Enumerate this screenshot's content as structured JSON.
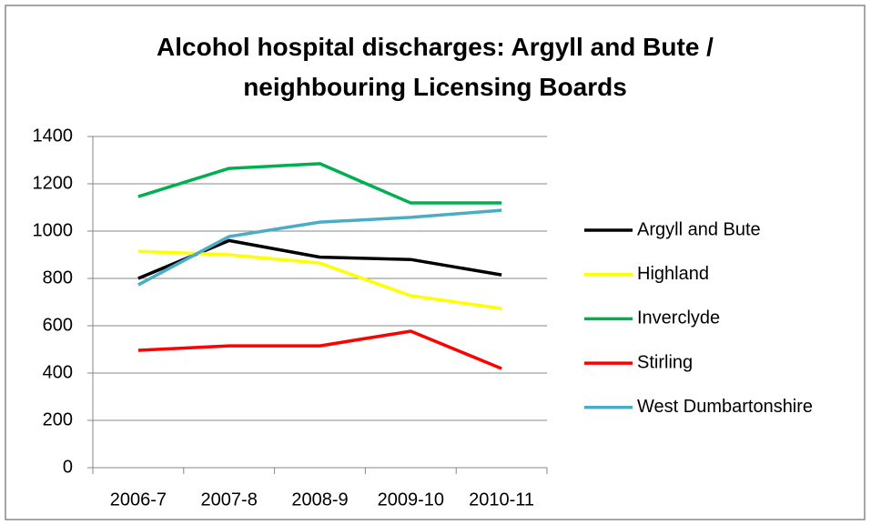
{
  "chart_data": {
    "type": "line",
    "title": "Alcohol hospital discharges: Argyll and Bute / neighbouring Licensing Boards",
    "categories": [
      "2006-7",
      "2007-8",
      "2008-9",
      "2009-10",
      "2010-11"
    ],
    "series": [
      {
        "name": "Argyll and Bute",
        "color": "#000000",
        "values": [
          800,
          960,
          890,
          880,
          815
        ]
      },
      {
        "name": "Highland",
        "color": "#ffff00",
        "values": [
          915,
          900,
          865,
          727,
          673
        ]
      },
      {
        "name": "Inverclyde",
        "color": "#00b050",
        "values": [
          1146,
          1265,
          1285,
          1119,
          1119
        ]
      },
      {
        "name": "Stirling",
        "color": "#ff0000",
        "values": [
          496,
          515,
          515,
          577,
          419
        ]
      },
      {
        "name": "West Dumbartonshire",
        "color": "#4bacc6",
        "values": [
          773,
          977,
          1038,
          1058,
          1088
        ]
      }
    ],
    "ylim": [
      0,
      1400
    ],
    "yticks": [
      0,
      200,
      400,
      600,
      800,
      1000,
      1200,
      1400
    ],
    "grid": true,
    "legend": "right"
  }
}
